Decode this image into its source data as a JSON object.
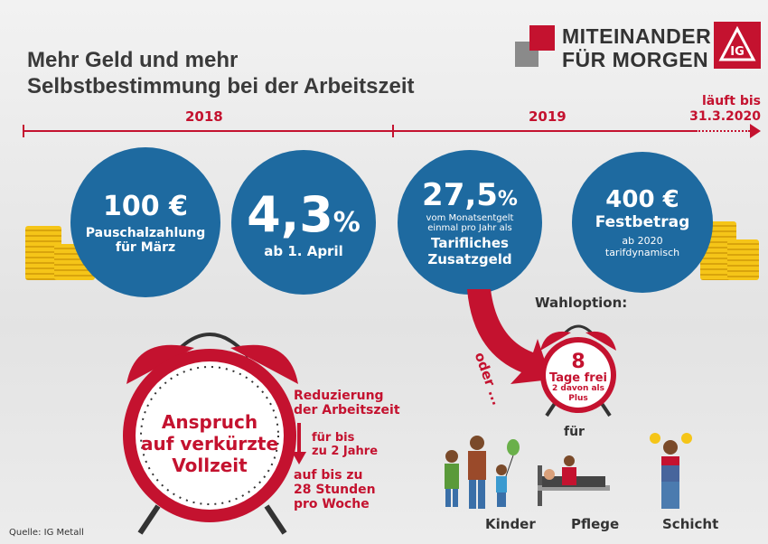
{
  "title": {
    "line1": "Mehr Geld und mehr",
    "line2": "Selbstbestimmung bei der Arbeitszeit"
  },
  "logo": {
    "line1": "MITEINANDER",
    "line2": "FÜR MORGEN",
    "mark": "IG"
  },
  "timeline": {
    "year1": "2018",
    "year2": "2019",
    "end_line1": "läuft bis",
    "end_line2": "31.3.2020"
  },
  "circles": [
    {
      "big": "100 €",
      "sub1": "Pauschalzahlung",
      "sub2": "für März"
    },
    {
      "big": "4,3",
      "pct": "%",
      "sub1": "ab 1. April"
    },
    {
      "big": "27,5",
      "pct": "%",
      "sub1": "vom Monatsentgelt",
      "sub2": "einmal pro Jahr als",
      "sub3": "Tarifliches",
      "sub4": "Zusatzgeld"
    },
    {
      "big": "400 €",
      "sub1": "Festbetrag",
      "sub2": "ab 2020",
      "sub3": "tarifdynamisch"
    }
  ],
  "big_clock": {
    "line1": "Anspruch",
    "line2": "auf verkürzte",
    "line3": "Vollzeit"
  },
  "reduction": {
    "l1": "Reduzierung",
    "l2": "der Arbeitszeit",
    "l3": "für bis",
    "l4": "zu 2 Jahre",
    "l5": "auf bis zu",
    "l6": "28 Stunden",
    "l7": "pro Woche"
  },
  "option": {
    "oder": "oder ...",
    "label": "Wahloption:",
    "num": "8",
    "days": "Tage frei",
    "sub1": "2 davon als",
    "sub2": "Plus",
    "fuer": "für"
  },
  "groups": [
    "Kinder",
    "Pflege",
    "Schicht"
  ],
  "source": "Quelle: IG Metall",
  "colors": {
    "red": "#c4122f",
    "blue": "#1e6aa0"
  }
}
